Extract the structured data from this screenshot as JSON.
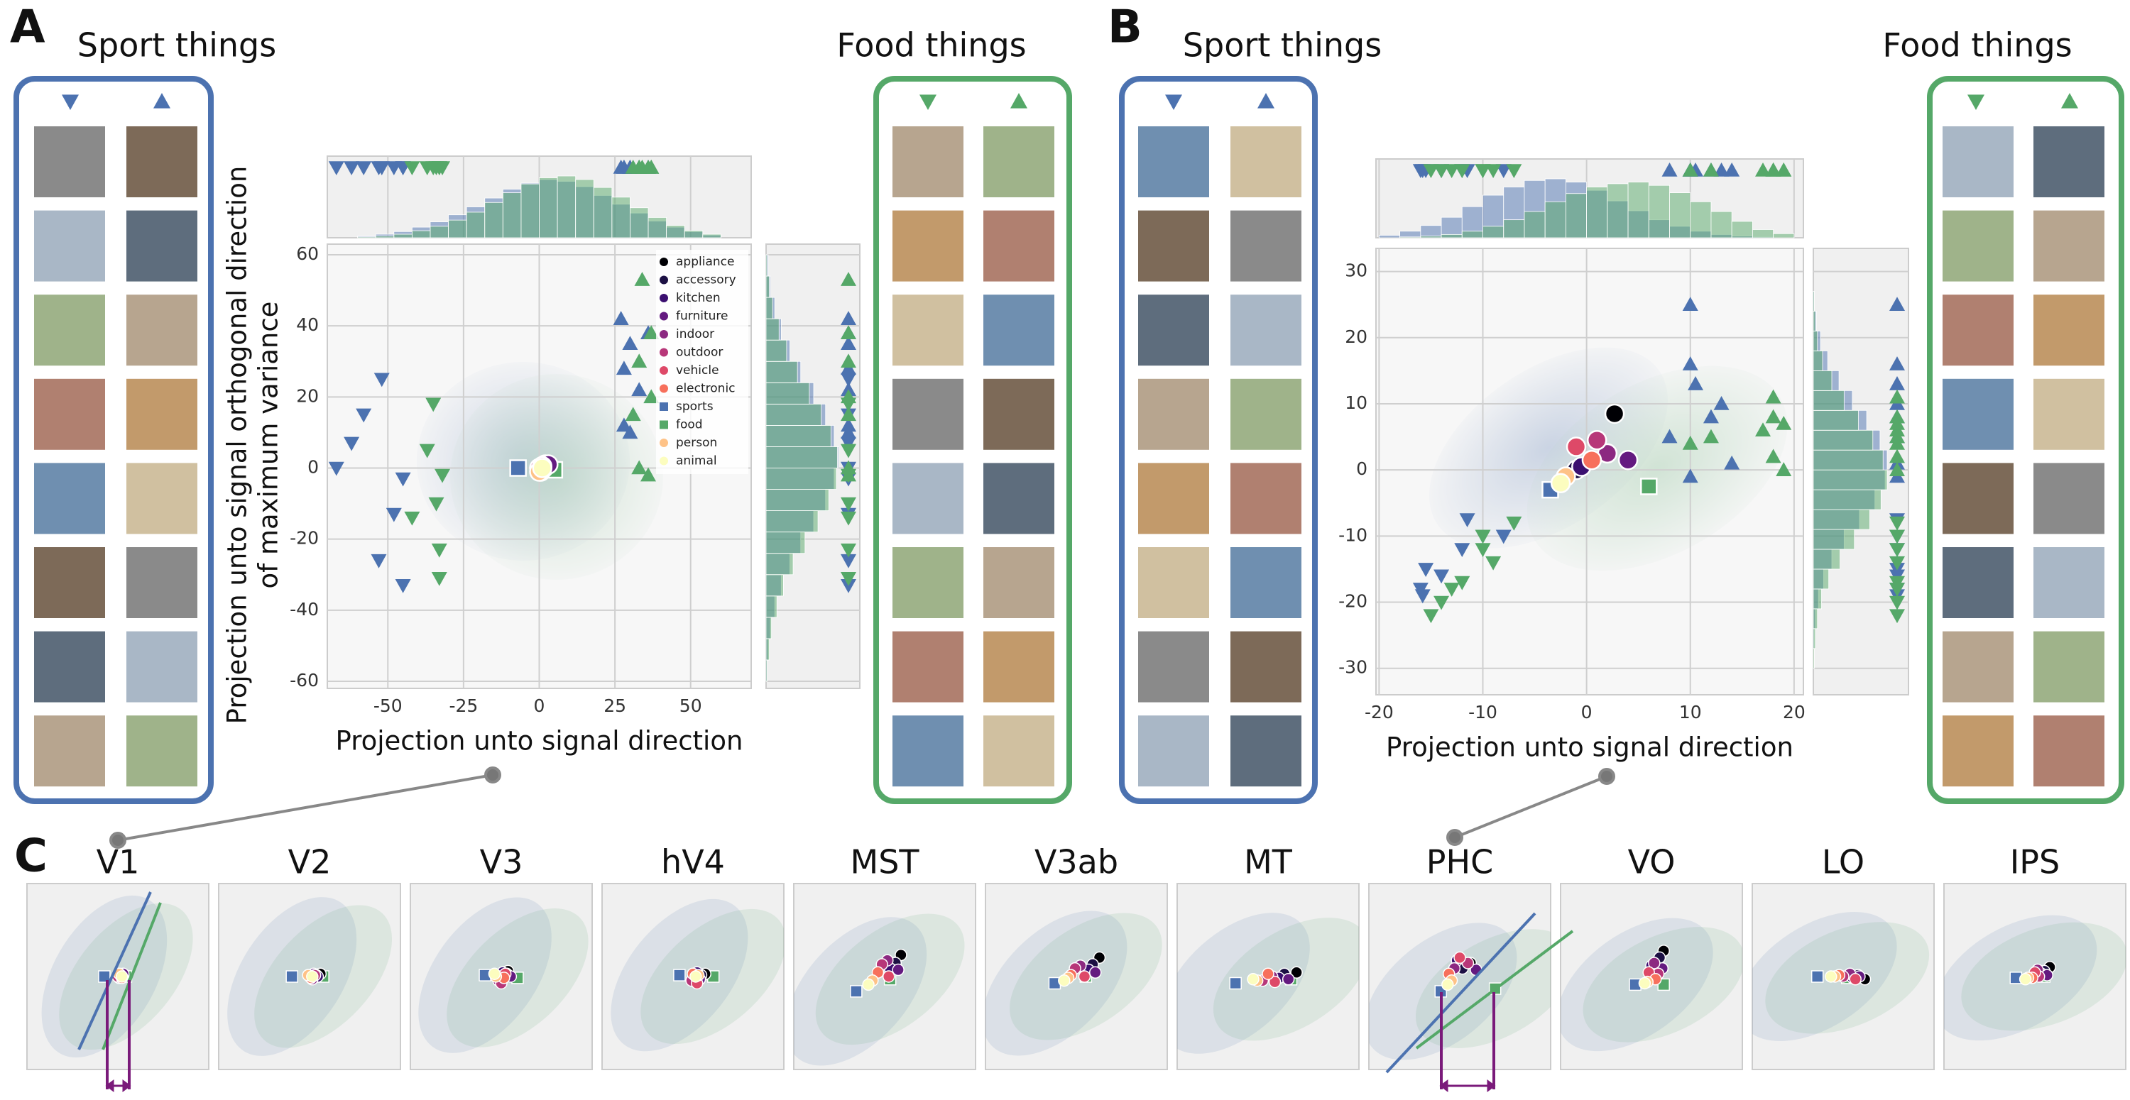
{
  "chart_data": [
    {
      "type": "scatter",
      "panel": "A",
      "sport_title": "Sport things",
      "food_title": "Food things",
      "xlabel": "Projection unto signal direction",
      "ylabel": [
        "Projection unto signal orthogonal direction",
        "of maximum variance"
      ],
      "xlim": [
        -70,
        70
      ],
      "ylim": [
        -62,
        63
      ],
      "xticks": [
        -50,
        -25,
        0,
        25,
        50
      ],
      "yticks": [
        -60,
        -40,
        -20,
        0,
        20,
        40,
        60
      ],
      "grid": true,
      "legend": {
        "position": "upper right"
      },
      "categories": [
        "appliance",
        "accessory",
        "kitchen",
        "furniture",
        "indoor",
        "outdoor",
        "vehicle",
        "electronic",
        "sports",
        "food",
        "person",
        "animal"
      ],
      "colors": [
        "#000004",
        "#1c1044",
        "#3b0f70",
        "#641a80",
        "#8c2981",
        "#b73779",
        "#de4968",
        "#f7705c",
        "#4c72b0",
        "#55a868",
        "#fec287",
        "#fcfdbf"
      ],
      "markers": [
        "circle",
        "circle",
        "circle",
        "circle",
        "circle",
        "circle",
        "circle",
        "circle",
        "square",
        "square",
        "circle",
        "circle"
      ],
      "means": {
        "x": [
          2,
          1,
          1.5,
          3,
          0.5,
          0,
          1,
          0.5,
          -7,
          5,
          0,
          1
        ],
        "y": [
          1,
          0.5,
          0,
          1,
          -0.5,
          0,
          0.5,
          -1,
          0,
          -0.5,
          -1,
          0
        ]
      },
      "series": [
        {
          "marker": "down",
          "color": "#4c72b0",
          "x": [
            -52,
            -58,
            -62,
            -67,
            -45,
            -53,
            -45,
            -48
          ],
          "y": [
            25,
            15,
            7,
            0,
            -3,
            -26,
            -33,
            -13
          ]
        },
        {
          "marker": "down",
          "color": "#55a868",
          "x": [
            -35,
            -37,
            -32,
            -34,
            -33,
            -33,
            -42
          ],
          "y": [
            18,
            5,
            -2,
            -10,
            -23,
            -31,
            -14
          ]
        },
        {
          "marker": "up",
          "color": "#4c72b0",
          "x": [
            27,
            30,
            28,
            33,
            28,
            30,
            36
          ],
          "y": [
            42,
            35,
            28,
            22,
            12,
            10,
            38
          ]
        },
        {
          "marker": "up",
          "color": "#55a868",
          "x": [
            34,
            37,
            33,
            37,
            31,
            33,
            36
          ],
          "y": [
            53,
            38,
            30,
            20,
            15,
            0,
            -2
          ]
        }
      ],
      "hist_x": {
        "bins": [
          -60,
          -54,
          -48,
          -42,
          -36,
          -30,
          -24,
          -18,
          -12,
          -6,
          0,
          6,
          12,
          18,
          24,
          30,
          36,
          42,
          48,
          54,
          60
        ],
        "series": [
          {
            "color": "#4c72b0",
            "counts": [
              2,
              4,
              7,
              12,
              18,
              26,
              35,
              45,
              55,
              62,
              66,
              64,
              58,
              48,
              38,
              28,
              19,
              12,
              7,
              3
            ]
          },
          {
            "color": "#55a868",
            "counts": [
              1,
              2,
              4,
              8,
              13,
              20,
              29,
              40,
              51,
              61,
              68,
              70,
              66,
              57,
              46,
              34,
              23,
              14,
              8,
              4
            ]
          }
        ]
      },
      "hist_y": {
        "bins": [
          -60,
          -54,
          -48,
          -42,
          -36,
          -30,
          -24,
          -18,
          -12,
          -6,
          0,
          6,
          12,
          18,
          24,
          30,
          36,
          42,
          48,
          54,
          60
        ],
        "series": [
          {
            "color": "#4c72b0",
            "counts": [
              1,
              2,
              4,
              8,
              14,
              22,
              32,
              44,
              55,
              63,
              67,
              63,
              55,
              44,
              32,
              22,
              14,
              8,
              4,
              2
            ]
          },
          {
            "color": "#55a868",
            "counts": [
              1,
              3,
              5,
              10,
              16,
              25,
              36,
              48,
              58,
              65,
              66,
              60,
              51,
              40,
              29,
              19,
              12,
              6,
              3,
              1
            ]
          }
        ]
      }
    },
    {
      "type": "scatter",
      "panel": "B",
      "sport_title": "Sport things",
      "food_title": "Food things",
      "xlabel": "Projection unto signal direction",
      "xlim": [
        -20.3,
        20.9
      ],
      "ylim": [
        -34,
        33.5
      ],
      "xticks": [
        -20,
        -10,
        0,
        10,
        20
      ],
      "yticks": [
        -30,
        -20,
        -10,
        0,
        10,
        20,
        30
      ],
      "grid": true,
      "means": {
        "x": [
          2.7,
          -1,
          -0.5,
          4,
          2,
          1,
          -1,
          0.5,
          -3.5,
          6,
          -2,
          -2.5
        ],
        "y": [
          8.5,
          0,
          0.5,
          1.5,
          2.5,
          4.5,
          3.5,
          1.5,
          -3,
          -2.5,
          -1,
          -2
        ]
      },
      "series": [
        {
          "marker": "down",
          "color": "#4c72b0",
          "x": [
            -15.5,
            -16,
            -15.8,
            -14,
            -11.5,
            -8,
            -12
          ],
          "y": [
            -15,
            -18,
            -19,
            -16,
            -7.5,
            -10,
            -12
          ]
        },
        {
          "marker": "down",
          "color": "#55a868",
          "x": [
            -14,
            -15,
            -13,
            -12,
            -10,
            -10,
            -7,
            -9
          ],
          "y": [
            -20,
            -22,
            -18,
            -17,
            -12,
            -10,
            -8,
            -14
          ]
        },
        {
          "marker": "up",
          "color": "#4c72b0",
          "x": [
            10,
            10,
            10.5,
            13,
            14,
            10,
            8,
            12
          ],
          "y": [
            25,
            16,
            13,
            10,
            1,
            -1,
            5,
            8
          ]
        },
        {
          "marker": "up",
          "color": "#55a868",
          "x": [
            18,
            18,
            17,
            19,
            18,
            19,
            12,
            10
          ],
          "y": [
            11,
            8,
            6,
            7,
            2,
            0,
            5,
            4
          ]
        }
      ],
      "hist_x": {
        "bins": [
          -20,
          -18,
          -16,
          -14,
          -12,
          -10,
          -8,
          -6,
          -4,
          -2,
          0,
          2,
          4,
          6,
          8,
          10,
          12,
          14,
          16,
          18,
          20
        ],
        "series": [
          {
            "color": "#4c72b0",
            "counts": [
              3,
              8,
              15,
              25,
              38,
              52,
              62,
              70,
              72,
              68,
              58,
              45,
              33,
              22,
              14,
              8,
              4,
              2,
              1,
              0
            ]
          },
          {
            "color": "#55a868",
            "counts": [
              0,
              1,
              2,
              4,
              8,
              14,
              22,
              32,
              44,
              54,
              62,
              66,
              68,
              64,
              55,
              44,
              32,
              20,
              10,
              5
            ]
          }
        ]
      },
      "hist_y": {
        "bins": [
          -30,
          -27,
          -24,
          -21,
          -18,
          -15,
          -12,
          -9,
          -6,
          -3,
          0,
          3,
          6,
          9,
          12,
          15,
          18,
          21,
          24,
          27,
          30
        ],
        "series": [
          {
            "color": "#4c72b0",
            "counts": [
              0,
              1,
              2,
              5,
              10,
              18,
              30,
              45,
              60,
              70,
              72,
              65,
              52,
              38,
              25,
              14,
              7,
              3,
              1,
              0
            ]
          },
          {
            "color": "#55a868",
            "counts": [
              1,
              2,
              4,
              8,
              15,
              26,
              40,
              55,
              66,
              72,
              68,
              58,
              44,
              30,
              18,
              9,
              4,
              2,
              1,
              0
            ]
          }
        ]
      }
    }
  ],
  "panel_c": {
    "panel": "C",
    "xlim": [
      -6.7,
      6.7
    ],
    "ylim": [
      -6.9,
      6.9
    ],
    "areas": [
      {
        "title": "V1",
        "x": [
          0.4,
          0.2,
          0.3,
          0.4,
          0.1,
          0.0,
          0.2,
          0.3,
          -1.0,
          0.6,
          0.1,
          0.3
        ],
        "y": [
          0.1,
          0.0,
          0.1,
          0.2,
          -0.1,
          0.0,
          0.1,
          -0.1,
          0.0,
          0.0,
          0.2,
          0.0
        ]
      },
      {
        "title": "V2",
        "x": [
          0.8,
          0.5,
          0.6,
          0.3,
          0.2,
          0.4,
          0.0,
          0.1,
          -1.3,
          1.0,
          -0.1,
          0.2
        ],
        "y": [
          0.2,
          0.1,
          0.0,
          0.2,
          -0.2,
          0.1,
          0.0,
          -0.1,
          0.0,
          0.0,
          0.1,
          0.0
        ]
      },
      {
        "title": "V3",
        "x": [
          0.5,
          0.4,
          0.1,
          0.7,
          -0.2,
          0.0,
          0.3,
          0.2,
          -1.2,
          1.2,
          -0.4,
          -0.5
        ],
        "y": [
          0.4,
          0.2,
          0.3,
          0.0,
          -0.3,
          -0.5,
          0.2,
          -0.1,
          0.1,
          -0.1,
          0.0,
          0.2
        ]
      },
      {
        "title": "hV4",
        "x": [
          0.9,
          0.6,
          0.3,
          0.5,
          0.1,
          -0.1,
          0.3,
          0.0,
          -1.0,
          1.5,
          0.4,
          0.2
        ],
        "y": [
          0.2,
          0.1,
          0.3,
          -0.2,
          0.0,
          -0.3,
          -0.5,
          0.2,
          0.1,
          0.0,
          0.1,
          0.0
        ]
      },
      {
        "title": "MST",
        "x": [
          1.2,
          0.8,
          0.4,
          1.0,
          0.2,
          -0.2,
          0.3,
          -0.5,
          -2.1,
          0.4,
          -0.9,
          -1.2
        ],
        "y": [
          1.6,
          1.0,
          0.6,
          0.5,
          1.2,
          0.9,
          0.0,
          0.3,
          -1.1,
          -0.2,
          -0.3,
          -0.6
        ]
      },
      {
        "title": "V3ab",
        "x": [
          1.7,
          1.2,
          0.9,
          1.4,
          0.3,
          -0.1,
          0.6,
          -0.4,
          -1.6,
          0.7,
          -0.6,
          -0.9
        ],
        "y": [
          1.4,
          0.9,
          0.5,
          0.3,
          0.8,
          0.6,
          0.0,
          0.1,
          -0.5,
          0.0,
          -0.1,
          -0.3
        ]
      },
      {
        "title": "MT",
        "x": [
          2.1,
          1.2,
          0.8,
          1.5,
          0.3,
          -0.4,
          0.5,
          0.0,
          -2.4,
          1.7,
          -0.8,
          -1.1
        ],
        "y": [
          0.3,
          0.2,
          -0.1,
          -0.2,
          0.0,
          -0.3,
          -0.4,
          0.2,
          -0.5,
          -0.2,
          -0.3,
          -0.2
        ]
      },
      {
        "title": "PHC",
        "x": [
          0.8,
          0.2,
          -0.2,
          1.2,
          -0.4,
          0.6,
          0.0,
          -0.8,
          -1.4,
          2.6,
          -0.6,
          -0.9
        ],
        "y": [
          1.0,
          0.6,
          1.2,
          0.5,
          0.6,
          1.0,
          1.4,
          0.2,
          -1.1,
          -0.9,
          -0.3,
          -0.6
        ]
      },
      {
        "title": "VO",
        "x": [
          0.9,
          0.6,
          0.0,
          0.8,
          0.2,
          0.5,
          -0.2,
          0.3,
          -1.2,
          0.9,
          -0.3,
          -0.5
        ],
        "y": [
          1.9,
          1.4,
          0.8,
          0.6,
          1.0,
          0.2,
          0.3,
          -0.2,
          -0.6,
          -0.6,
          -0.4,
          -0.5
        ]
      },
      {
        "title": "LO",
        "x": [
          1.6,
          1.1,
          0.7,
          1.2,
          0.5,
          0.0,
          0.9,
          -0.3,
          -1.9,
          0.3,
          -0.6,
          -0.9
        ],
        "y": [
          -0.2,
          0.1,
          -0.1,
          0.0,
          0.2,
          0.0,
          -0.2,
          0.1,
          0.0,
          -0.1,
          0.0,
          0.0
        ]
      },
      {
        "title": "IPS",
        "x": [
          1.1,
          0.7,
          0.5,
          0.9,
          0.2,
          0.3,
          0.0,
          -0.2,
          -1.4,
          0.7,
          -0.5,
          -0.7
        ],
        "y": [
          0.7,
          0.4,
          0.2,
          0.1,
          0.5,
          0.0,
          0.3,
          -0.1,
          -0.1,
          0.0,
          -0.1,
          -0.2
        ]
      }
    ]
  }
}
